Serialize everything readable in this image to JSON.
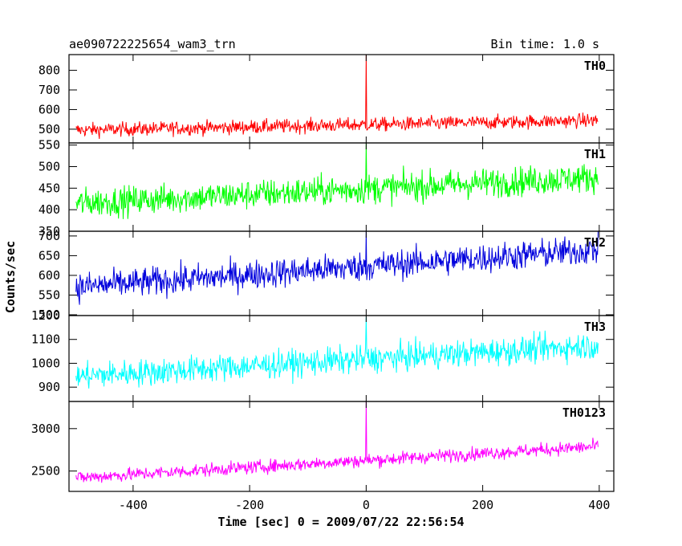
{
  "chart_data": {
    "type": "line",
    "title_left": "ae090722225654_wam3_trn",
    "title_right": "Bin time: 1.0 s",
    "xlabel": "Time [sec] 0 = 2009/07/22 22:56:54",
    "ylabel": "Counts/sec",
    "xlim": [
      -510,
      425
    ],
    "xticks": [
      -400,
      -200,
      0,
      200,
      400
    ],
    "x_start": -498,
    "x_end": 398,
    "x_step": 1,
    "grid": false,
    "panels": [
      {
        "name": "TH0",
        "color": "#ff0000",
        "ylim": [
          430,
          880
        ],
        "yticks": [
          500,
          600,
          700,
          800
        ],
        "baseline_start": 495,
        "baseline_end": 545,
        "noise_amplitude": 25,
        "spike": {
          "x": 0,
          "y": 880
        }
      },
      {
        "name": "TH1",
        "color": "#00ff00",
        "ylim": [
          350,
          555
        ],
        "yticks": [
          350,
          400,
          450,
          500,
          550
        ],
        "baseline_start": 415,
        "baseline_end": 475,
        "noise_amplitude": 24,
        "spike": {
          "x": 0,
          "y": 555
        }
      },
      {
        "name": "TH2",
        "color": "#0000dd",
        "ylim": [
          498,
          712
        ],
        "yticks": [
          500,
          550,
          600,
          650,
          700
        ],
        "baseline_start": 570,
        "baseline_end": 665,
        "noise_amplitude": 26,
        "spike": {
          "x": 0,
          "y": 712
        }
      },
      {
        "name": "TH3",
        "color": "#00ffff",
        "ylim": [
          840,
          1200
        ],
        "yticks": [
          900,
          1000,
          1100,
          1200
        ],
        "baseline_start": 945,
        "baseline_end": 1075,
        "noise_amplitude": 40,
        "spike": {
          "x": 0,
          "y": 1195
        }
      },
      {
        "name": "TH0123",
        "color": "#ff00ff",
        "ylim": [
          2260,
          3320
        ],
        "yticks": [
          2500,
          3000
        ],
        "baseline_start": 2420,
        "baseline_end": 2790,
        "noise_amplitude": 55,
        "spike": {
          "x": 0,
          "y": 3320
        }
      }
    ]
  }
}
